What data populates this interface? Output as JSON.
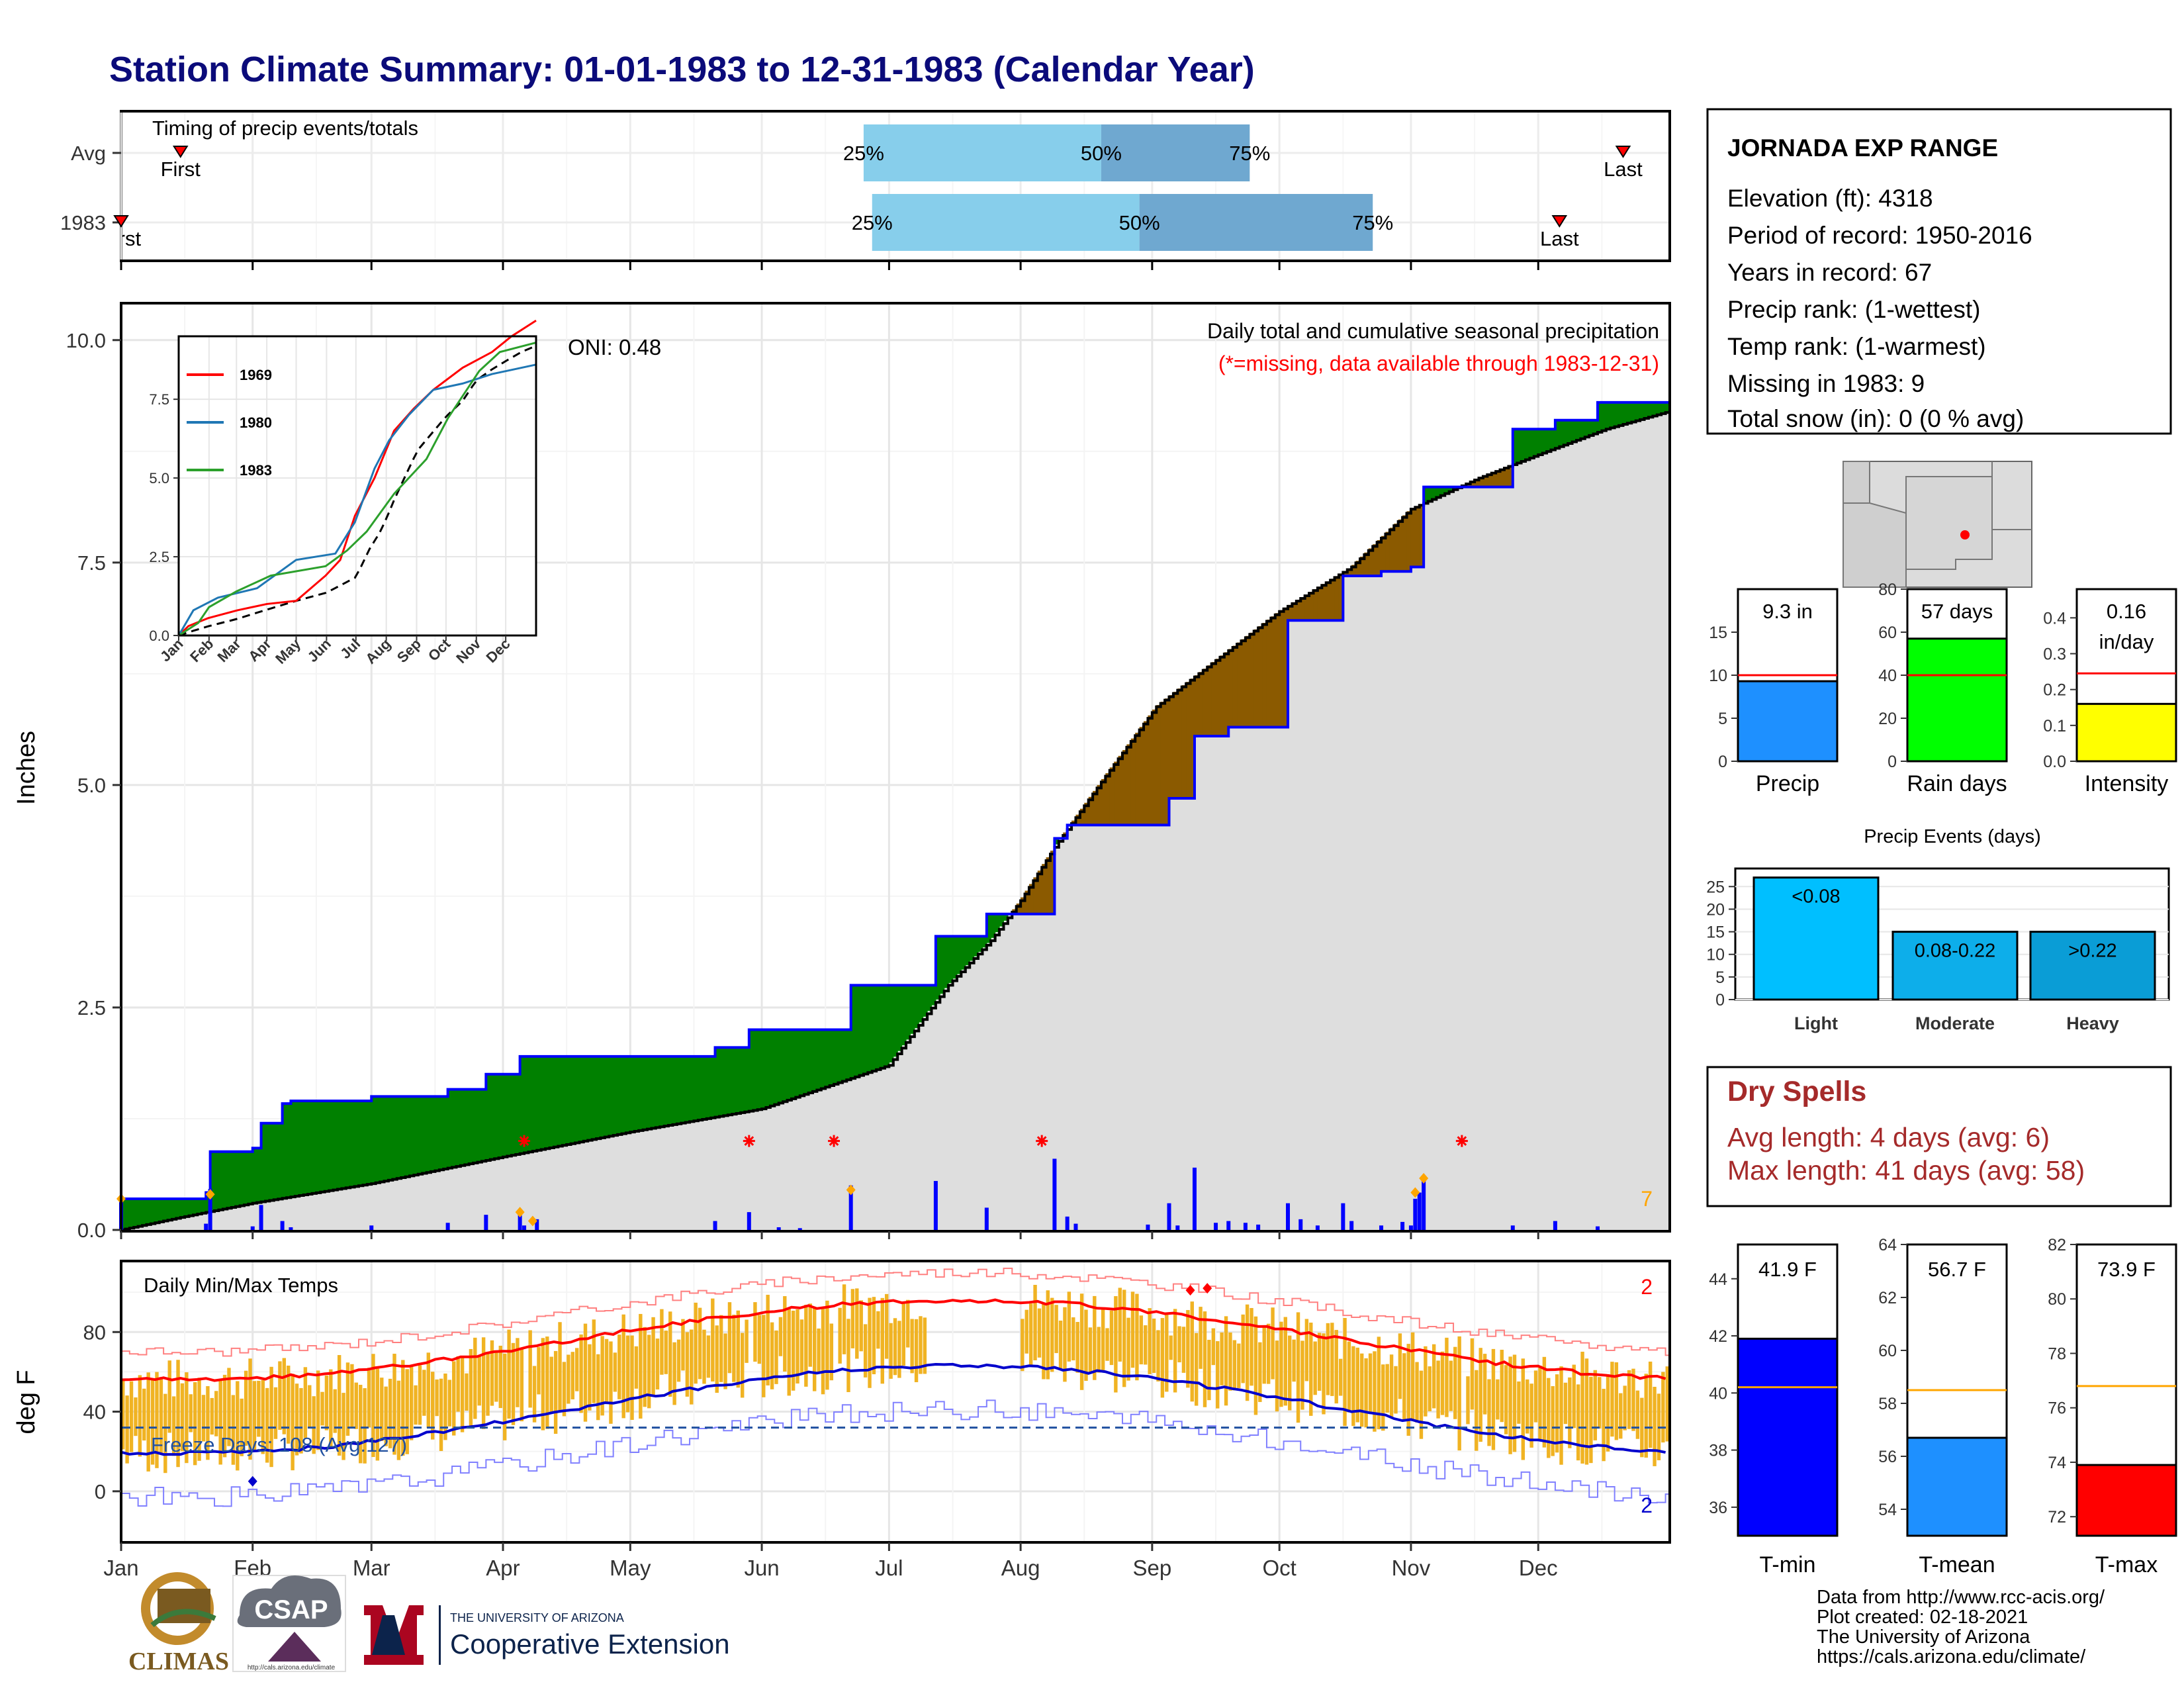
{
  "title": "Station Climate Summary: 01-01-1983 to 12-31-1983 (Calendar Year)",
  "months": [
    "Jan",
    "Feb",
    "Mar",
    "Apr",
    "May",
    "Jun",
    "Jul",
    "Aug",
    "Sep",
    "Oct",
    "Nov",
    "Dec"
  ],
  "colors": {
    "title": "#0b0b7a",
    "cum_fill_above": "#008000",
    "cum_fill_below": "#8b5a00",
    "avg_fill": "#dedede",
    "bar_blue": "#0000ff",
    "star_red": "#ff0000",
    "diamond_orange": "#ffa500",
    "temp_bar": "#f0b323",
    "tmax_line": "#ff0000",
    "tmin_line": "#0000cc",
    "timing_light": "#87ceeb",
    "timing_dark": "#6fa8d0"
  },
  "timing": {
    "label": "Timing of precip events/totals",
    "rows": [
      {
        "label": "Avg",
        "first_day": 14,
        "last_day": 354,
        "p25": 175,
        "p50": 231,
        "p75": 266,
        "first_label": "First",
        "last_label": "Last",
        "p25_label": "25%",
        "p50_label": "50%",
        "p75_label": "75%"
      },
      {
        "label": "1983",
        "first_day": 0,
        "last_day": 339,
        "p25": 177,
        "p50": 240,
        "p75": 295,
        "first_label": "First",
        "last_label": "Last",
        "p25_label": "25%",
        "p50_label": "50%",
        "p75_label": "75%"
      }
    ]
  },
  "precip": {
    "ylabel": "Inches",
    "yticks": [
      "0.0",
      "2.5",
      "5.0",
      "7.5",
      "10.0"
    ],
    "ymax": 10.4,
    "annotation_title": "Daily total and cumulative seasonal precipitation",
    "annotation_missing": "(*=missing, data available through 1983-12-31)",
    "oni": "ONI: 0.48",
    "count_label": "7",
    "cum_1983": [
      [
        0,
        0.35
      ],
      [
        20,
        0.35
      ],
      [
        20,
        0.42
      ],
      [
        21,
        0.42
      ],
      [
        21,
        0.88
      ],
      [
        31,
        0.88
      ],
      [
        31,
        0.92
      ],
      [
        33,
        0.92
      ],
      [
        33,
        1.2
      ],
      [
        38,
        1.2
      ],
      [
        38,
        1.42
      ],
      [
        40,
        1.42
      ],
      [
        40,
        1.45
      ],
      [
        59,
        1.45
      ],
      [
        59,
        1.5
      ],
      [
        77,
        1.5
      ],
      [
        77,
        1.58
      ],
      [
        86,
        1.58
      ],
      [
        86,
        1.75
      ],
      [
        94,
        1.75
      ],
      [
        94,
        1.95
      ],
      [
        140,
        1.95
      ],
      [
        140,
        2.05
      ],
      [
        148,
        2.05
      ],
      [
        148,
        2.25
      ],
      [
        172,
        2.25
      ],
      [
        172,
        2.75
      ],
      [
        192,
        2.75
      ],
      [
        192,
        3.3
      ],
      [
        204,
        3.3
      ],
      [
        204,
        3.55
      ],
      [
        220,
        3.55
      ],
      [
        220,
        4.4
      ],
      [
        223,
        4.4
      ],
      [
        223,
        4.55
      ],
      [
        247,
        4.55
      ],
      [
        247,
        4.85
      ],
      [
        253,
        4.85
      ],
      [
        253,
        5.55
      ],
      [
        261,
        5.55
      ],
      [
        261,
        5.65
      ],
      [
        275,
        5.65
      ],
      [
        275,
        6.85
      ],
      [
        288,
        6.85
      ],
      [
        288,
        7.35
      ],
      [
        297,
        7.35
      ],
      [
        297,
        7.4
      ],
      [
        304,
        7.4
      ],
      [
        304,
        7.45
      ],
      [
        307,
        7.45
      ],
      [
        307,
        8.35
      ],
      [
        328,
        8.35
      ],
      [
        328,
        9.0
      ],
      [
        338,
        9.0
      ],
      [
        338,
        9.1
      ],
      [
        348,
        9.1
      ],
      [
        348,
        9.3
      ],
      [
        365,
        9.3
      ]
    ],
    "cum_avg": [
      [
        0,
        0
      ],
      [
        15,
        0.15
      ],
      [
        31,
        0.3
      ],
      [
        59,
        0.52
      ],
      [
        90,
        0.82
      ],
      [
        120,
        1.1
      ],
      [
        151,
        1.36
      ],
      [
        181,
        1.85
      ],
      [
        195,
        2.75
      ],
      [
        205,
        3.25
      ],
      [
        212,
        3.7
      ],
      [
        220,
        4.3
      ],
      [
        232,
        5.1
      ],
      [
        244,
        5.88
      ],
      [
        258,
        6.4
      ],
      [
        273,
        6.95
      ],
      [
        290,
        7.45
      ],
      [
        304,
        8.1
      ],
      [
        320,
        8.45
      ],
      [
        335,
        8.73
      ],
      [
        350,
        9.0
      ],
      [
        365,
        9.2
      ]
    ],
    "daily": [
      [
        0,
        0.35
      ],
      [
        20,
        0.07
      ],
      [
        21,
        0.46
      ],
      [
        31,
        0.04
      ],
      [
        33,
        0.28
      ],
      [
        38,
        0.1
      ],
      [
        40,
        0.03
      ],
      [
        59,
        0.05
      ],
      [
        77,
        0.08
      ],
      [
        86,
        0.17
      ],
      [
        94,
        0.2
      ],
      [
        95,
        0.05
      ],
      [
        98,
        0.12
      ],
      [
        140,
        0.1
      ],
      [
        148,
        0.2
      ],
      [
        155,
        0.03
      ],
      [
        160,
        0.02
      ],
      [
        172,
        0.5
      ],
      [
        192,
        0.55
      ],
      [
        204,
        0.25
      ],
      [
        220,
        0.8
      ],
      [
        223,
        0.15
      ],
      [
        225,
        0.07
      ],
      [
        242,
        0.06
      ],
      [
        247,
        0.3
      ],
      [
        249,
        0.05
      ],
      [
        253,
        0.7
      ],
      [
        258,
        0.08
      ],
      [
        261,
        0.1
      ],
      [
        265,
        0.08
      ],
      [
        268,
        0.06
      ],
      [
        275,
        0.3
      ],
      [
        278,
        0.12
      ],
      [
        282,
        0.05
      ],
      [
        288,
        0.3
      ],
      [
        290,
        0.1
      ],
      [
        297,
        0.05
      ],
      [
        302,
        0.09
      ],
      [
        304,
        0.05
      ],
      [
        305,
        0.35
      ],
      [
        306,
        0.42
      ],
      [
        307,
        0.55
      ],
      [
        328,
        0.05
      ],
      [
        338,
        0.1
      ],
      [
        348,
        0.04
      ]
    ],
    "missing_days": [
      95,
      148,
      168,
      217,
      316
    ],
    "diamonds": [
      [
        0,
        0.35
      ],
      [
        21,
        0.4
      ],
      [
        94,
        0.2
      ],
      [
        97,
        0.1
      ],
      [
        172,
        0.45
      ],
      [
        305,
        0.42
      ],
      [
        307,
        0.58
      ]
    ]
  },
  "inset": {
    "series": [
      {
        "name": "1969",
        "color": "#ff0000",
        "points": [
          [
            0,
            0
          ],
          [
            10,
            0.3
          ],
          [
            30,
            0.55
          ],
          [
            60,
            0.8
          ],
          [
            90,
            1.0
          ],
          [
            120,
            1.1
          ],
          [
            150,
            1.9
          ],
          [
            165,
            2.4
          ],
          [
            180,
            3.8
          ],
          [
            200,
            5.0
          ],
          [
            220,
            6.5
          ],
          [
            240,
            7.2
          ],
          [
            260,
            7.8
          ],
          [
            290,
            8.5
          ],
          [
            320,
            9.0
          ],
          [
            340,
            9.5
          ],
          [
            365,
            10.0
          ]
        ]
      },
      {
        "name": "1980",
        "color": "#1f77b4",
        "points": [
          [
            0,
            0
          ],
          [
            15,
            0.8
          ],
          [
            40,
            1.2
          ],
          [
            80,
            1.5
          ],
          [
            120,
            2.4
          ],
          [
            160,
            2.6
          ],
          [
            180,
            3.6
          ],
          [
            200,
            5.3
          ],
          [
            215,
            6.2
          ],
          [
            235,
            7.0
          ],
          [
            260,
            7.8
          ],
          [
            290,
            8.0
          ],
          [
            320,
            8.3
          ],
          [
            365,
            8.6
          ]
        ]
      },
      {
        "name": "1983",
        "color": "#2ca02c",
        "points": [
          [
            0,
            0
          ],
          [
            20,
            0.4
          ],
          [
            31,
            0.9
          ],
          [
            59,
            1.4
          ],
          [
            94,
            1.9
          ],
          [
            150,
            2.2
          ],
          [
            172,
            2.7
          ],
          [
            192,
            3.3
          ],
          [
            220,
            4.5
          ],
          [
            253,
            5.6
          ],
          [
            275,
            6.9
          ],
          [
            307,
            8.4
          ],
          [
            328,
            9.0
          ],
          [
            365,
            9.3
          ]
        ]
      }
    ],
    "yticks": [
      "0.0",
      "2.5",
      "5.0",
      "7.5"
    ],
    "ymax": 9.5
  },
  "temps": {
    "label": "Daily Min/Max Temps",
    "ylabel": "deg F",
    "yticks": [
      "0",
      "40",
      "80"
    ],
    "ymin": -25,
    "ymax": 115,
    "freeze_label": "Freeze Days: 108 (Avg:127)",
    "freeze_line": 32,
    "count_max": "2",
    "count_min": "2"
  },
  "station": {
    "name": "JORNADA EXP RANGE",
    "elevation": "Elevation (ft): 4318",
    "period": "Period of record: 1950-2016",
    "years": "Years in record: 67",
    "precip_rank": "Precip rank:  (1-wettest)",
    "temp_rank": "Temp rank:  (1-warmest)",
    "missing": "Missing in 1983: 9",
    "snow": "Total snow (in): 0 (0 % avg)"
  },
  "bars_small": [
    {
      "label": "Precip",
      "value_label": "9.3 in",
      "value": 9.3,
      "avg": 10.0,
      "ymax": 20,
      "yticks": [
        "0",
        "5",
        "10",
        "15"
      ],
      "ytick_vals": [
        0,
        5,
        10,
        15
      ],
      "color": "#1e90ff"
    },
    {
      "label": "Rain days",
      "value_label": "57 days",
      "value": 57,
      "avg": 40,
      "ymax": 80,
      "yticks": [
        "0",
        "20",
        "40",
        "60",
        "80"
      ],
      "ytick_vals": [
        0,
        20,
        40,
        60,
        80
      ],
      "color": "#00ff00"
    },
    {
      "label": "Intensity",
      "value_label": "0.16 in/day",
      "value_line1": "0.16",
      "value_line2": "in/day",
      "value": 0.16,
      "avg": 0.245,
      "ymax": 0.48,
      "yticks": [
        "0.0",
        "0.1",
        "0.2",
        "0.3",
        "0.4"
      ],
      "ytick_vals": [
        0,
        0.1,
        0.2,
        0.3,
        0.4
      ],
      "color": "#ffff00"
    }
  ],
  "events": {
    "title": "Precip Events (days)",
    "yticks": [
      "0",
      "5",
      "10",
      "15",
      "20",
      "25"
    ],
    "bars": [
      {
        "label": "Light",
        "value_label": "<0.08",
        "value": 27,
        "color": "#00bfff"
      },
      {
        "label": "Moderate",
        "value_label": "0.08-0.22",
        "value": 15,
        "color": "#0daeea"
      },
      {
        "label": "Heavy",
        "value_label": ">0.22",
        "value": 15,
        "color": "#0a9dd6"
      }
    ]
  },
  "dry_spells": {
    "title": "Dry Spells",
    "avg": "Avg length: 4 days (avg: 6)",
    "max": "Max length: 41 days (avg: 58)",
    "color": "#a52a2a"
  },
  "temp_bars": [
    {
      "label": "T-min",
      "value_label": "41.9 F",
      "value": 41.9,
      "avg": 40.2,
      "ymin": 35,
      "ymax": 45.2,
      "yticks": [
        "36",
        "38",
        "40",
        "42",
        "44"
      ],
      "ytick_vals": [
        36,
        38,
        40,
        42,
        44
      ],
      "color": "#0000ff"
    },
    {
      "label": "T-mean",
      "value_label": "56.7 F",
      "value": 56.7,
      "avg": 58.5,
      "ymin": 53,
      "ymax": 64,
      "yticks": [
        "54",
        "56",
        "58",
        "60",
        "62",
        "64"
      ],
      "ytick_vals": [
        54,
        56,
        58,
        60,
        62,
        64
      ],
      "color": "#1e90ff"
    },
    {
      "label": "T-max",
      "value_label": "73.9 F",
      "value": 73.9,
      "avg": 76.8,
      "ymin": 71.3,
      "ymax": 82,
      "yticks": [
        "72",
        "74",
        "76",
        "78",
        "80",
        "82"
      ],
      "ytick_vals": [
        72,
        74,
        76,
        78,
        80,
        82
      ],
      "color": "#ff0000"
    }
  ],
  "credits": {
    "line1": "Data from http://www.rcc-acis.org/",
    "line2": "Plot created: 02-18-2021",
    "line3": "The University of Arizona",
    "line4": "https://cals.arizona.edu/climate/"
  },
  "logos": {
    "climas": "CLIMAS",
    "csap": "CSAP",
    "csap_url": "http://cals.arizona.edu/climate",
    "ua_small": "THE UNIVERSITY OF ARIZONA",
    "ua_big": "Cooperative Extension"
  }
}
